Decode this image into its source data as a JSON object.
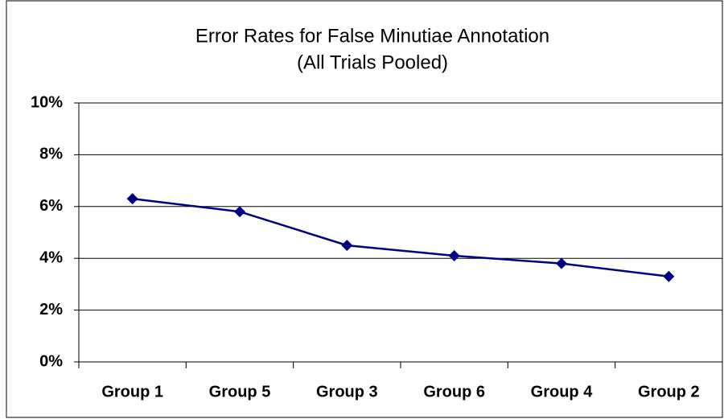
{
  "chart_data": {
    "type": "line",
    "title": [
      "Error Rates for False Minutiae Annotation",
      "(All Trials Pooled)"
    ],
    "categories": [
      "Group 1",
      "Group 5",
      "Group 3",
      "Group 6",
      "Group 4",
      "Group 2"
    ],
    "series": [
      {
        "name": null,
        "color": "#000080",
        "values": [
          6.3,
          5.8,
          4.5,
          4.1,
          3.8,
          3.3
        ]
      }
    ],
    "ylim": [
      0,
      10
    ],
    "yticks": [
      {
        "value": 0,
        "label": "0%"
      },
      {
        "value": 2,
        "label": "2%"
      },
      {
        "value": 4,
        "label": "4%"
      },
      {
        "value": 6,
        "label": "6%"
      },
      {
        "value": 8,
        "label": "8%"
      },
      {
        "value": 10,
        "label": "10%"
      }
    ],
    "grid": true
  }
}
